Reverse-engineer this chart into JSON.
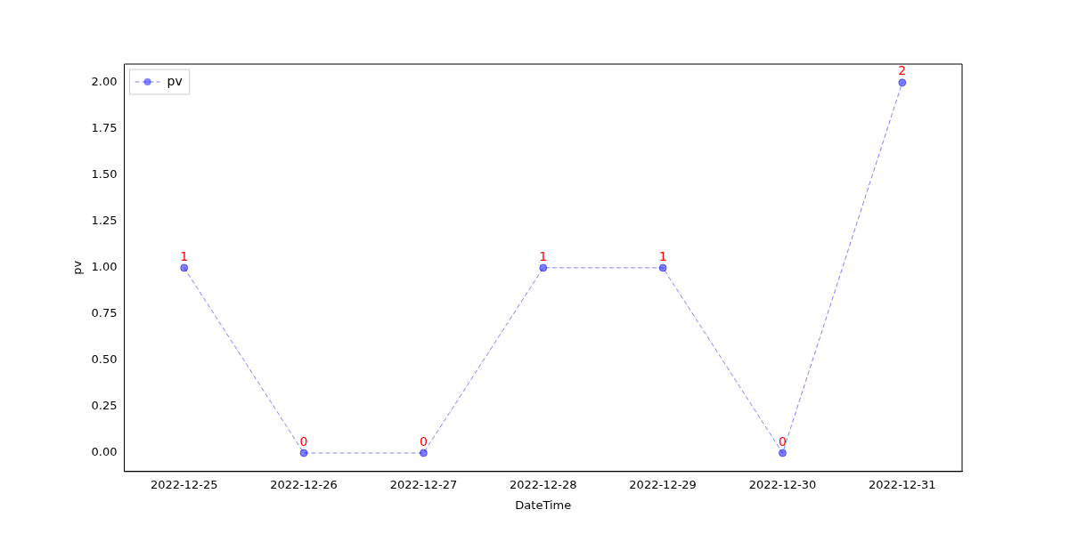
{
  "chart_data": {
    "type": "line",
    "xlabel": "DateTime",
    "ylabel": "pv",
    "categories": [
      "2022-12-25",
      "2022-12-26",
      "2022-12-27",
      "2022-12-28",
      "2022-12-29",
      "2022-12-30",
      "2022-12-31"
    ],
    "series": [
      {
        "name": "pv",
        "color": "#0000ff",
        "values": [
          1,
          0,
          0,
          1,
          1,
          0,
          2
        ]
      }
    ],
    "ylim": [
      -0.1,
      2.1
    ],
    "yticks": [
      {
        "value": 0,
        "label": "0.00"
      },
      {
        "value": 0.25,
        "label": "0.25"
      },
      {
        "value": 0.5,
        "label": "0.50"
      },
      {
        "value": 0.75,
        "label": "0.75"
      },
      {
        "value": 1,
        "label": "1.00"
      },
      {
        "value": 1.25,
        "label": "1.25"
      },
      {
        "value": 1.5,
        "label": "1.50"
      },
      {
        "value": 1.75,
        "label": "1.75"
      },
      {
        "value": 2,
        "label": "2.00"
      }
    ],
    "grid": false,
    "legend": "top left",
    "marker": "circle",
    "line_style": "dashed",
    "data_labels": true
  }
}
